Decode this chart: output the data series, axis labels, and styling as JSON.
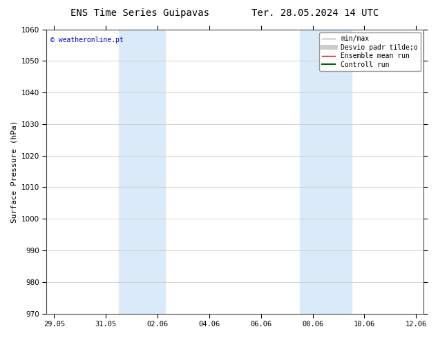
{
  "title_left": "ENS Time Series Guipavas",
  "title_right": "Ter. 28.05.2024 14 UTC",
  "ylabel": "Surface Pressure (hPa)",
  "ylim": [
    970,
    1060
  ],
  "yticks": [
    970,
    980,
    990,
    1000,
    1010,
    1020,
    1030,
    1040,
    1050,
    1060
  ],
  "x_labels": [
    "29.05",
    "31.05",
    "02.06",
    "04.06",
    "06.06",
    "08.06",
    "10.06",
    "12.06"
  ],
  "x_positions": [
    0,
    2,
    4,
    6,
    8,
    10,
    12,
    14
  ],
  "xlim": [
    -0.3,
    14.3
  ],
  "shaded_regions": [
    {
      "xmin": 2.5,
      "xmax": 4.3,
      "color": "#daeaf8"
    },
    {
      "xmin": 9.5,
      "xmax": 11.5,
      "color": "#daeaf8"
    }
  ],
  "watermark": "© weatheronline.pt",
  "legend_items": [
    {
      "label": "min/max",
      "color": "#aaaaaa",
      "lw": 1.0,
      "style": "solid"
    },
    {
      "label": "Desvio padr tilde;o",
      "color": "#cccccc",
      "lw": 5,
      "style": "solid"
    },
    {
      "label": "Ensemble mean run",
      "color": "#dd0000",
      "lw": 1.0,
      "style": "solid"
    },
    {
      "label": "Controll run",
      "color": "#006600",
      "lw": 1.5,
      "style": "solid"
    }
  ],
  "background_color": "#ffffff",
  "plot_bg_color": "#ffffff",
  "grid_color": "#cccccc",
  "title_fontsize": 10,
  "tick_fontsize": 7.5,
  "label_fontsize": 8,
  "watermark_fontsize": 7,
  "legend_fontsize": 7
}
